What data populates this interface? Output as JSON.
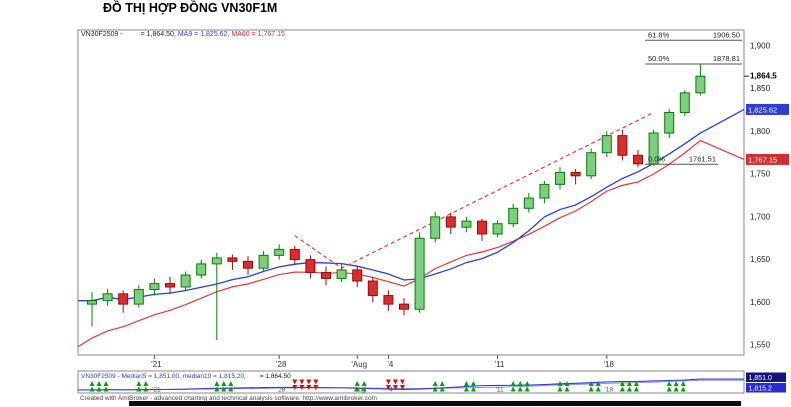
{
  "page": {
    "title": "ĐỒ THỊ HỢP ĐỒNG VN30F1M"
  },
  "main_legend": {
    "symbol": "VN30F2509 -",
    "close": "= 1,864.50,",
    "ma9": "MA9 = 1,825.62,",
    "ma60": "MA60 = 1,767.15"
  },
  "lower_legend": {
    "left": "VN30F2509 - Median5 = 1,851.00, median10 = 1,815.20,",
    "right": "= 1,864.50"
  },
  "footer": {
    "credit": "Created with AmiBroker - advanced charting and technical analysis software. http://www.amibroker.com"
  },
  "chart_data": {
    "type": "candlestick",
    "symbol": "VN30F2509",
    "title": "ĐỒ THỊ HỢP ĐỒNG VN30F1M",
    "last_close": 1864.5,
    "ma9_value": 1825.62,
    "ma60_value": 1767.15,
    "price_axis": {
      "range_top": 1915,
      "range_bottom": 1542,
      "ticks": [
        {
          "v": 1900,
          "label": "1,900"
        },
        {
          "v": 1850,
          "label": "1,850"
        },
        {
          "v": 1800,
          "label": "1,800"
        },
        {
          "v": 1750,
          "label": "1,750"
        },
        {
          "v": 1700,
          "label": "1,700"
        },
        {
          "v": 1650,
          "label": "1,650"
        },
        {
          "v": 1600,
          "label": "1,600"
        },
        {
          "v": 1550,
          "label": "1,550"
        }
      ],
      "last_price_label": "1,864.5",
      "ma9_badge": "1,825.62",
      "ma60_badge": "1,767.15"
    },
    "x_axis": {
      "labels": [
        {
          "i": 4,
          "label": "'21"
        },
        {
          "i": 12,
          "label": "'28"
        },
        {
          "i": 17,
          "label": "'Aug"
        },
        {
          "i": 19,
          "label": "'4"
        },
        {
          "i": 26,
          "label": "'11"
        },
        {
          "i": 33,
          "label": "'18"
        }
      ]
    },
    "fib_levels": [
      {
        "pct": "61.8%",
        "value": 1906.5,
        "label": "1906.50"
      },
      {
        "pct": "50.0%",
        "value": 1878.81,
        "label": "1878.81"
      },
      {
        "pct": "0.0%",
        "value": 1761.51,
        "label": "1761.51"
      }
    ],
    "trendline": {
      "points": [
        [
          13,
          1678
        ],
        [
          16,
          1640
        ],
        [
          36,
          1822
        ]
      ]
    },
    "candles": [
      [
        1598,
        1612,
        1572,
        1602
      ],
      [
        1602,
        1616,
        1596,
        1610
      ],
      [
        1610,
        1614,
        1588,
        1598
      ],
      [
        1598,
        1620,
        1594,
        1615
      ],
      [
        1615,
        1628,
        1608,
        1622
      ],
      [
        1622,
        1630,
        1610,
        1618
      ],
      [
        1618,
        1636,
        1614,
        1632
      ],
      [
        1632,
        1650,
        1628,
        1645
      ],
      [
        1645,
        1658,
        1556,
        1652
      ],
      [
        1652,
        1656,
        1638,
        1648
      ],
      [
        1648,
        1654,
        1632,
        1640
      ],
      [
        1640,
        1660,
        1636,
        1655
      ],
      [
        1655,
        1668,
        1650,
        1662
      ],
      [
        1662,
        1666,
        1644,
        1650
      ],
      [
        1650,
        1655,
        1628,
        1635
      ],
      [
        1635,
        1642,
        1620,
        1628
      ],
      [
        1628,
        1645,
        1624,
        1638
      ],
      [
        1638,
        1642,
        1618,
        1625
      ],
      [
        1625,
        1630,
        1600,
        1608
      ],
      [
        1608,
        1614,
        1590,
        1598
      ],
      [
        1598,
        1605,
        1585,
        1592
      ],
      [
        1592,
        1682,
        1588,
        1675
      ],
      [
        1675,
        1706,
        1670,
        1700
      ],
      [
        1700,
        1705,
        1680,
        1688
      ],
      [
        1688,
        1700,
        1682,
        1695
      ],
      [
        1695,
        1698,
        1672,
        1680
      ],
      [
        1680,
        1696,
        1676,
        1692
      ],
      [
        1692,
        1715,
        1688,
        1710
      ],
      [
        1710,
        1728,
        1705,
        1722
      ],
      [
        1722,
        1742,
        1716,
        1738
      ],
      [
        1738,
        1758,
        1732,
        1752
      ],
      [
        1752,
        1756,
        1738,
        1748
      ],
      [
        1748,
        1780,
        1744,
        1775
      ],
      [
        1775,
        1800,
        1770,
        1795
      ],
      [
        1795,
        1802,
        1766,
        1772
      ],
      [
        1772,
        1778,
        1758,
        1762
      ],
      [
        1762,
        1802,
        1760,
        1798
      ],
      [
        1798,
        1826,
        1792,
        1822
      ],
      [
        1822,
        1848,
        1818,
        1845
      ],
      [
        1845,
        1879,
        1842,
        1864.5
      ]
    ],
    "colors": {
      "up_fill": "#7fce7f",
      "up_stroke": "#0b7a0b",
      "down_fill": "#dd2c2c",
      "down_stroke": "#8c1010",
      "ma9": "#2b3fd4",
      "ma60": "#e03a3a",
      "fib": "#555555",
      "trend": "#e04040",
      "badge_blue": "#2b3fd4",
      "badge_red": "#d03030",
      "panel_badge1": "#15157a",
      "panel_badge2": "#2a2ad0",
      "arrow_up": "#0c9a0c",
      "arrow_down": "#cc1515"
    },
    "lower_panel": {
      "median5_badge": "1,851.0",
      "median10_badge": "1,815.2",
      "arrow_clusters": [
        {
          "i": 0,
          "n": 3,
          "dir": "up"
        },
        {
          "i": 3,
          "n": 2,
          "dir": "up"
        },
        {
          "i": 8,
          "n": 3,
          "dir": "up"
        },
        {
          "i": 13,
          "n": 4,
          "dir": "down"
        },
        {
          "i": 17,
          "n": 2,
          "dir": "up"
        },
        {
          "i": 19,
          "n": 3,
          "dir": "down"
        },
        {
          "i": 22,
          "n": 2,
          "dir": "up"
        },
        {
          "i": 24,
          "n": 2,
          "dir": "up"
        },
        {
          "i": 27,
          "n": 3,
          "dir": "up"
        },
        {
          "i": 30,
          "n": 2,
          "dir": "up"
        },
        {
          "i": 32,
          "n": 2,
          "dir": "up"
        },
        {
          "i": 34,
          "n": 3,
          "dir": "up"
        },
        {
          "i": 37,
          "n": 3,
          "dir": "up"
        }
      ]
    }
  }
}
